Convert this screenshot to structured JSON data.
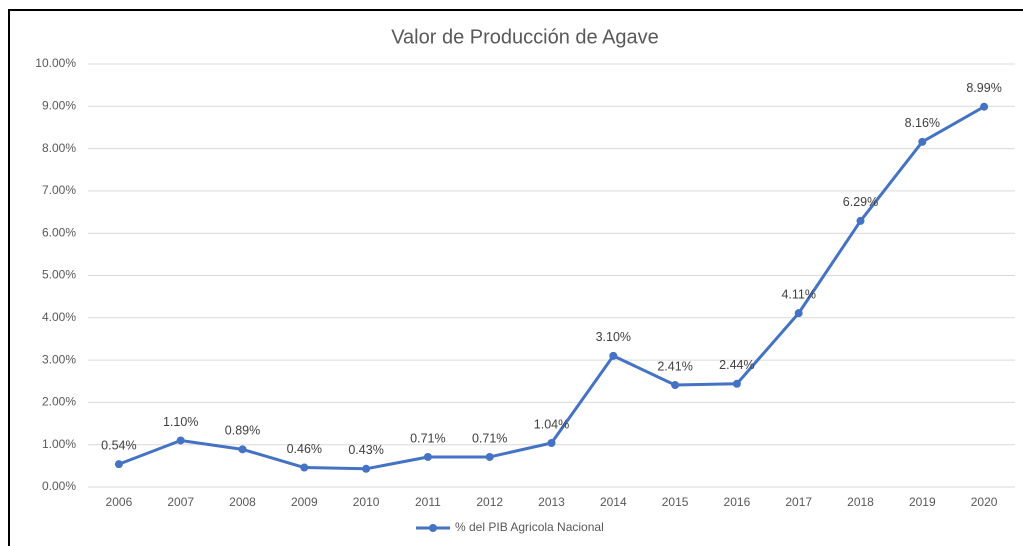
{
  "chart_data": {
    "type": "line",
    "title": "Valor de Producción de Agave",
    "categories": [
      "2006",
      "2007",
      "2008",
      "2009",
      "2010",
      "2011",
      "2012",
      "2013",
      "2014",
      "2015",
      "2016",
      "2017",
      "2018",
      "2019",
      "2020"
    ],
    "series": [
      {
        "name": "% del PIB Agricola Nacional",
        "color": "#4472c4",
        "values": [
          0.54,
          1.1,
          0.89,
          0.46,
          0.43,
          0.71,
          0.71,
          1.04,
          3.1,
          2.41,
          2.44,
          4.11,
          6.29,
          8.16,
          8.99
        ],
        "value_labels": [
          "0.54%",
          "1.10%",
          "0.89%",
          "0.46%",
          "0.43%",
          "0.71%",
          "0.71%",
          "1.04%",
          "3.10%",
          "2.41%",
          "2.44%",
          "4.11%",
          "6.29%",
          "8.16%",
          "8.99%"
        ]
      }
    ],
    "ylim": [
      0,
      10
    ],
    "yticks": [
      {
        "value": 0,
        "label": "0.00%"
      },
      {
        "value": 1,
        "label": "1.00%"
      },
      {
        "value": 2,
        "label": "2.00%"
      },
      {
        "value": 3,
        "label": "3.00%"
      },
      {
        "value": 4,
        "label": "4.00%"
      },
      {
        "value": 5,
        "label": "5.00%"
      },
      {
        "value": 6,
        "label": "6.00%"
      },
      {
        "value": 7,
        "label": "7.00%"
      },
      {
        "value": 8,
        "label": "8.00%"
      },
      {
        "value": 9,
        "label": "9.00%"
      },
      {
        "value": 10,
        "label": "10.00%"
      }
    ],
    "grid": true,
    "legend": "bottom"
  }
}
